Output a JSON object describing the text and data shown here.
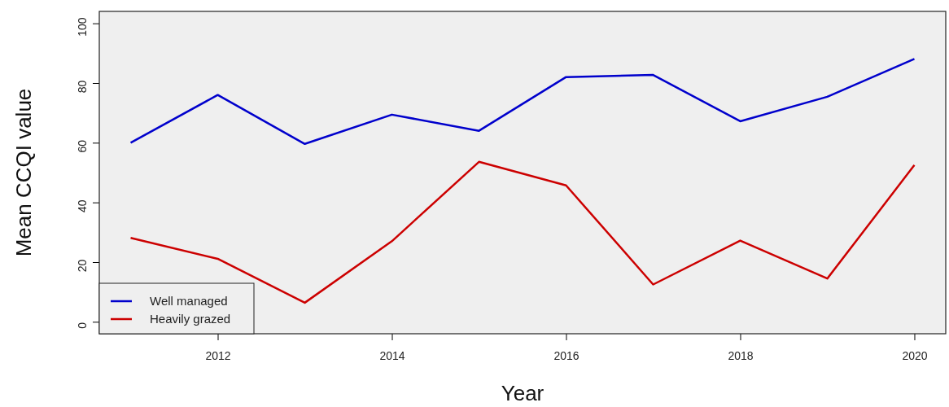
{
  "chart_data": {
    "type": "line",
    "xlabel": "Year",
    "ylabel": "Mean CCQI value",
    "x": [
      2011,
      2012,
      2013,
      2014,
      2015,
      2016,
      2017,
      2018,
      2019,
      2020
    ],
    "series": [
      {
        "name": "Well managed",
        "color": "#0000cc",
        "values": [
          60,
          76,
          59.6,
          69.4,
          64,
          82,
          82.7,
          67.2,
          75.4,
          88.1
        ]
      },
      {
        "name": "Heavily grazed",
        "color": "#cc0000",
        "values": [
          28.1,
          21.1,
          6.4,
          27,
          53.6,
          45.7,
          12.5,
          27.2,
          14.5,
          52.5
        ]
      }
    ],
    "xlim": [
      2010.64,
      2020.36
    ],
    "xticks": [
      2012,
      2014,
      2016,
      2018,
      2020
    ],
    "ylim": [
      -4,
      104
    ],
    "yticks": [
      0,
      20,
      40,
      60,
      80,
      100
    ],
    "grid": false,
    "legend": "bottom left",
    "marker": "none",
    "line_style": "solid"
  }
}
